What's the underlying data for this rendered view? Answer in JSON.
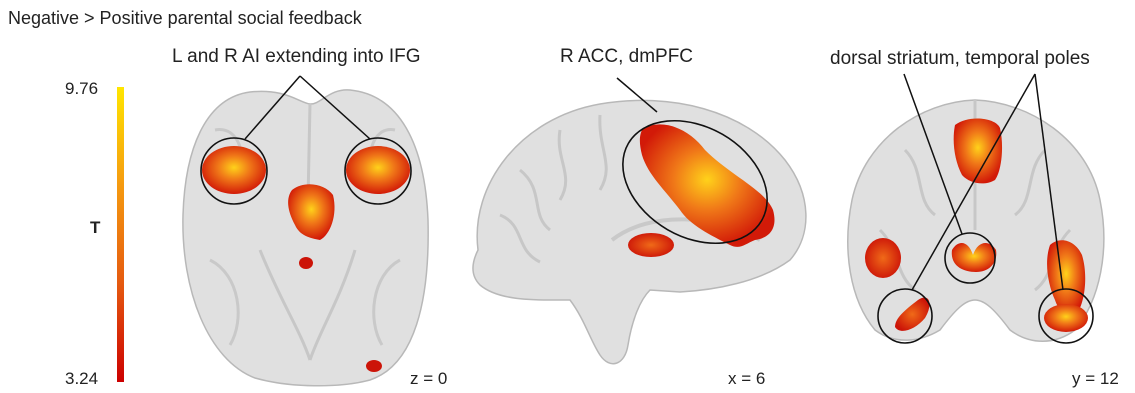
{
  "title": "Negative > Positive parental social feedback",
  "colorbar": {
    "max_label": "9.76",
    "min_label": "3.24",
    "stat_label": "T",
    "color_top": "#ffe600",
    "color_bottom": "#cc0000"
  },
  "panels": [
    {
      "slice": "z = 0",
      "annotation": "L and R AI extending into IFG"
    },
    {
      "slice": "x = 6",
      "annotation": "R ACC, dmPFC"
    },
    {
      "slice": "y = 12",
      "annotation": "dorsal striatum, temporal poles"
    }
  ],
  "colors": {
    "brain": "#e0e0e0",
    "brain_edge": "#b8b8b8",
    "activation_core": "#ffd21a",
    "activation_mid": "#f07818",
    "activation_edge": "#d21a08"
  }
}
